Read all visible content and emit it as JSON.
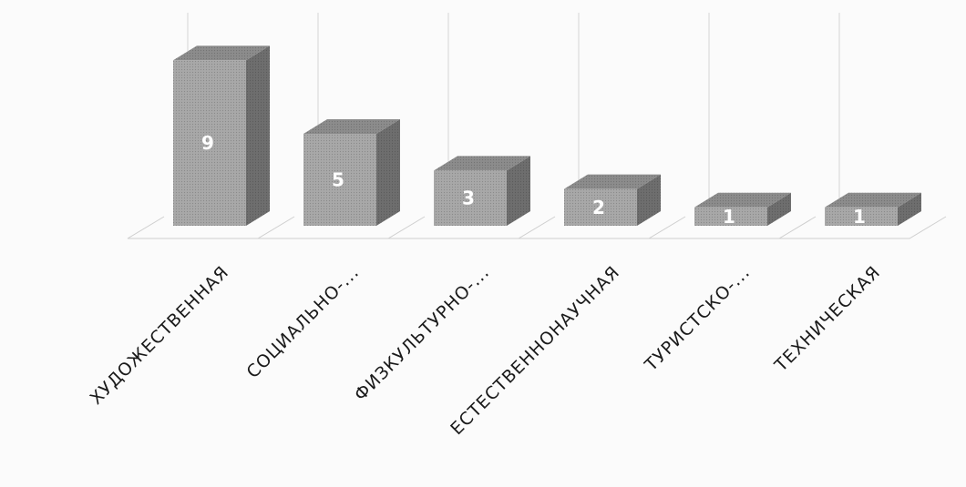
{
  "chart_data": {
    "type": "bar",
    "title": "",
    "xlabel": "",
    "ylabel": "",
    "categories": [
      "ХУДОЖЕСТВЕННАЯ",
      "СОЦИАЛЬНО-...",
      "ФИЗКУЛЬТУРНО-...",
      "ЕСТЕСТВЕННОНАУЧНАЯ",
      "ТУРИСТСКО-...",
      "ТЕХНИЧЕСКАЯ"
    ],
    "values": [
      9,
      5,
      3,
      2,
      1,
      1
    ],
    "ylim": [
      0,
      10
    ],
    "grid": true,
    "legend": "none",
    "three_d": true,
    "colors": {
      "front": "#a8a8a8",
      "top": "#8c8c8c",
      "side": "#6e6e6e",
      "value_label": "#ffffff"
    }
  }
}
